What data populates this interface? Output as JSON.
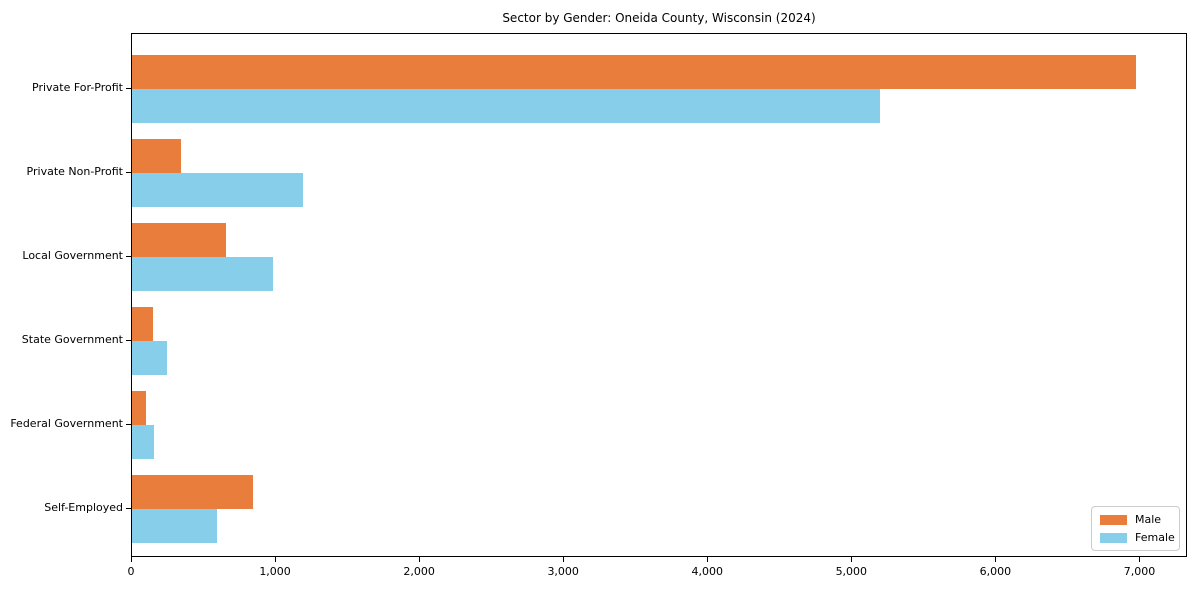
{
  "chart_data": {
    "type": "bar",
    "orientation": "horizontal",
    "title": "Sector by Gender: Oneida County, Wisconsin (2024)",
    "categories": [
      "Private For-Profit",
      "Private Non-Profit",
      "Local Government",
      "State Government",
      "Federal Government",
      "Self-Employed"
    ],
    "series": [
      {
        "name": "Male",
        "color": "#E97D3C",
        "values": [
          6970,
          340,
          650,
          145,
          100,
          840
        ]
      },
      {
        "name": "Female",
        "color": "#87CEEB",
        "values": [
          5190,
          1190,
          980,
          245,
          155,
          590
        ]
      }
    ],
    "xlabel": "",
    "ylabel": "",
    "xlim": [
      0,
      7330
    ],
    "xticks": [
      0,
      1000,
      2000,
      3000,
      4000,
      5000,
      6000,
      7000
    ],
    "xtick_labels": [
      "0",
      "1,000",
      "2,000",
      "3,000",
      "4,000",
      "5,000",
      "6,000",
      "7,000"
    ],
    "grid": false,
    "legend": {
      "position": "lower right",
      "entries": [
        "Male",
        "Female"
      ]
    }
  }
}
